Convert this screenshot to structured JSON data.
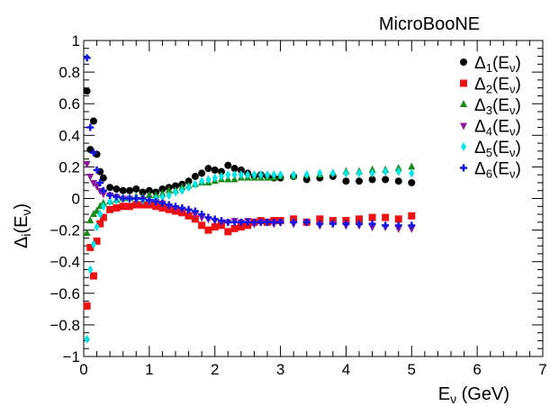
{
  "chart_data": {
    "type": "scatter",
    "experiment_label": "MicroBooNE",
    "xlabel": {
      "main": "E",
      "sub": "ν",
      "rest": " (GeV)"
    },
    "ylabel": {
      "main": "Δ",
      "sub": "i",
      "rest": "(E",
      "sub2": "ν",
      "close": ")"
    },
    "xlim": [
      0,
      7
    ],
    "ylim": [
      -1,
      1
    ],
    "x_ticks": [
      0,
      1,
      2,
      3,
      4,
      5,
      6,
      7
    ],
    "y_ticks": [
      -1,
      -0.8,
      -0.6,
      -0.4,
      -0.2,
      0,
      0.2,
      0.4,
      0.6,
      0.8,
      1
    ],
    "x_tick_labels": [
      "0",
      "1",
      "2",
      "3",
      "4",
      "5",
      "6",
      "7"
    ],
    "y_tick_labels": [
      "−1",
      "−0.8",
      "−0.6",
      "−0.4",
      "−0.2",
      "0",
      "0.2",
      "0.4",
      "0.6",
      "0.8",
      "1"
    ],
    "legend_position": "top-right",
    "series": [
      {
        "name": "Δ1(Eν)",
        "label_sub": "1",
        "marker": "circle",
        "color": "#000000",
        "x": [
          0.05,
          0.1,
          0.15,
          0.2,
          0.25,
          0.3,
          0.4,
          0.5,
          0.6,
          0.7,
          0.8,
          0.9,
          1.0,
          1.1,
          1.2,
          1.3,
          1.4,
          1.5,
          1.6,
          1.7,
          1.8,
          1.9,
          2.0,
          2.1,
          2.2,
          2.3,
          2.4,
          2.5,
          2.6,
          2.7,
          2.8,
          2.9,
          3.0,
          3.2,
          3.4,
          3.6,
          3.8,
          4.0,
          4.2,
          4.4,
          4.6,
          4.8,
          5.0
        ],
        "y": [
          0.68,
          0.31,
          0.49,
          0.28,
          0.17,
          0.13,
          0.07,
          0.06,
          0.05,
          0.05,
          0.06,
          0.04,
          0.05,
          0.04,
          0.06,
          0.07,
          0.08,
          0.09,
          0.11,
          0.14,
          0.16,
          0.19,
          0.18,
          0.17,
          0.21,
          0.19,
          0.18,
          0.16,
          0.14,
          0.15,
          0.14,
          0.13,
          0.13,
          0.14,
          0.12,
          0.13,
          0.14,
          0.11,
          0.11,
          0.12,
          0.12,
          0.11,
          0.1
        ]
      },
      {
        "name": "Δ2(Eν)",
        "label_sub": "2",
        "marker": "square",
        "color": "#ee1111",
        "x": [
          0.05,
          0.1,
          0.15,
          0.2,
          0.25,
          0.3,
          0.4,
          0.5,
          0.6,
          0.7,
          0.8,
          0.9,
          1.0,
          1.1,
          1.2,
          1.3,
          1.4,
          1.5,
          1.6,
          1.7,
          1.8,
          1.9,
          2.0,
          2.1,
          2.2,
          2.3,
          2.4,
          2.5,
          2.6,
          2.7,
          2.8,
          2.9,
          3.0,
          3.2,
          3.4,
          3.6,
          3.8,
          4.0,
          4.2,
          4.4,
          4.6,
          4.8,
          5.0
        ],
        "y": [
          -0.68,
          -0.31,
          -0.49,
          -0.27,
          -0.16,
          -0.12,
          -0.07,
          -0.06,
          -0.05,
          -0.05,
          -0.04,
          -0.04,
          -0.04,
          -0.05,
          -0.06,
          -0.07,
          -0.08,
          -0.09,
          -0.11,
          -0.13,
          -0.17,
          -0.2,
          -0.18,
          -0.17,
          -0.21,
          -0.19,
          -0.18,
          -0.17,
          -0.15,
          -0.14,
          -0.15,
          -0.14,
          -0.14,
          -0.13,
          -0.15,
          -0.13,
          -0.14,
          -0.14,
          -0.13,
          -0.12,
          -0.12,
          -0.13,
          -0.11
        ]
      },
      {
        "name": "Δ3(Eν)",
        "label_sub": "3",
        "marker": "triangle-up",
        "color": "#1a8a1a",
        "x": [
          0.05,
          0.1,
          0.15,
          0.2,
          0.25,
          0.3,
          0.4,
          0.5,
          0.6,
          0.7,
          0.8,
          0.9,
          1.0,
          1.1,
          1.2,
          1.3,
          1.4,
          1.5,
          1.6,
          1.7,
          1.8,
          1.9,
          2.0,
          2.1,
          2.2,
          2.3,
          2.4,
          2.5,
          2.6,
          2.7,
          2.8,
          2.9,
          3.0,
          3.2,
          3.4,
          3.6,
          3.8,
          4.0,
          4.2,
          4.4,
          4.6,
          4.8,
          5.0
        ],
        "y": [
          -0.22,
          -0.14,
          -0.1,
          -0.08,
          -0.05,
          -0.03,
          -0.02,
          -0.01,
          0.0,
          0.0,
          0.01,
          0.01,
          0.02,
          0.02,
          0.03,
          0.05,
          0.05,
          0.07,
          0.08,
          0.09,
          0.1,
          0.1,
          0.11,
          0.12,
          0.12,
          0.12,
          0.13,
          0.13,
          0.13,
          0.13,
          0.13,
          0.13,
          0.14,
          0.14,
          0.15,
          0.15,
          0.16,
          0.17,
          0.17,
          0.18,
          0.18,
          0.19,
          0.2
        ]
      },
      {
        "name": "Δ4(Eν)",
        "label_sub": "4",
        "marker": "triangle-down",
        "color": "#8b1a9a",
        "x": [
          0.05,
          0.1,
          0.15,
          0.2,
          0.25,
          0.3,
          0.4,
          0.5,
          0.6,
          0.7,
          0.8,
          0.9,
          1.0,
          1.1,
          1.2,
          1.3,
          1.4,
          1.5,
          1.6,
          1.7,
          1.8,
          1.9,
          2.0,
          2.1,
          2.2,
          2.3,
          2.4,
          2.5,
          2.6,
          2.7,
          2.8,
          2.9,
          3.0,
          3.2,
          3.4,
          3.6,
          3.8,
          4.0,
          4.2,
          4.4,
          4.6,
          4.8,
          5.0
        ],
        "y": [
          0.22,
          0.14,
          0.1,
          0.08,
          0.05,
          0.03,
          0.02,
          0.01,
          0.0,
          0.0,
          -0.01,
          -0.01,
          -0.02,
          -0.02,
          -0.03,
          -0.05,
          -0.06,
          -0.07,
          -0.08,
          -0.1,
          -0.12,
          -0.13,
          -0.14,
          -0.15,
          -0.15,
          -0.14,
          -0.15,
          -0.14,
          -0.16,
          -0.15,
          -0.15,
          -0.16,
          -0.15,
          -0.16,
          -0.15,
          -0.17,
          -0.16,
          -0.17,
          -0.17,
          -0.18,
          -0.18,
          -0.19,
          -0.19
        ]
      },
      {
        "name": "Δ5(Eν)",
        "label_sub": "5",
        "marker": "diamond",
        "color": "#00e5e5",
        "x": [
          0.05,
          0.1,
          0.15,
          0.2,
          0.25,
          0.3,
          0.4,
          0.5,
          0.6,
          0.7,
          0.8,
          0.9,
          1.0,
          1.1,
          1.2,
          1.3,
          1.4,
          1.5,
          1.6,
          1.7,
          1.8,
          1.9,
          2.0,
          2.1,
          2.2,
          2.3,
          2.4,
          2.5,
          2.6,
          2.7,
          2.8,
          2.9,
          3.0,
          3.2,
          3.4,
          3.6,
          3.8,
          4.0,
          4.2,
          4.4,
          4.6,
          4.8,
          5.0
        ],
        "y": [
          -0.89,
          -0.45,
          -0.29,
          -0.18,
          -0.1,
          -0.05,
          -0.02,
          -0.01,
          0.0,
          0.0,
          0.0,
          -0.01,
          -0.01,
          0.0,
          0.01,
          0.02,
          0.04,
          0.05,
          0.07,
          0.09,
          0.11,
          0.12,
          0.13,
          0.14,
          0.15,
          0.15,
          0.15,
          0.15,
          0.15,
          0.15,
          0.15,
          0.15,
          0.15,
          0.15,
          0.15,
          0.16,
          0.16,
          0.16,
          0.16,
          0.16,
          0.17,
          0.17,
          0.16
        ]
      },
      {
        "name": "Δ6(Eν)",
        "label_sub": "6",
        "marker": "plus",
        "color": "#1515e5",
        "x": [
          0.05,
          0.1,
          0.15,
          0.2,
          0.25,
          0.3,
          0.4,
          0.5,
          0.6,
          0.7,
          0.8,
          0.9,
          1.0,
          1.1,
          1.2,
          1.3,
          1.4,
          1.5,
          1.6,
          1.7,
          1.8,
          1.9,
          2.0,
          2.1,
          2.2,
          2.3,
          2.4,
          2.5,
          2.6,
          2.7,
          2.8,
          2.9,
          3.0,
          3.2,
          3.4,
          3.6,
          3.8,
          4.0,
          4.2,
          4.4,
          4.6,
          4.8,
          5.0
        ],
        "y": [
          0.89,
          0.45,
          0.29,
          0.18,
          0.1,
          0.05,
          0.02,
          0.01,
          0.0,
          0.0,
          0.0,
          0.0,
          -0.01,
          -0.02,
          -0.03,
          -0.04,
          -0.05,
          -0.06,
          -0.07,
          -0.08,
          -0.1,
          -0.12,
          -0.13,
          -0.14,
          -0.15,
          -0.15,
          -0.15,
          -0.15,
          -0.15,
          -0.15,
          -0.15,
          -0.15,
          -0.15,
          -0.15,
          -0.15,
          -0.16,
          -0.16,
          -0.16,
          -0.16,
          -0.16,
          -0.17,
          -0.17,
          -0.17
        ]
      }
    ]
  }
}
